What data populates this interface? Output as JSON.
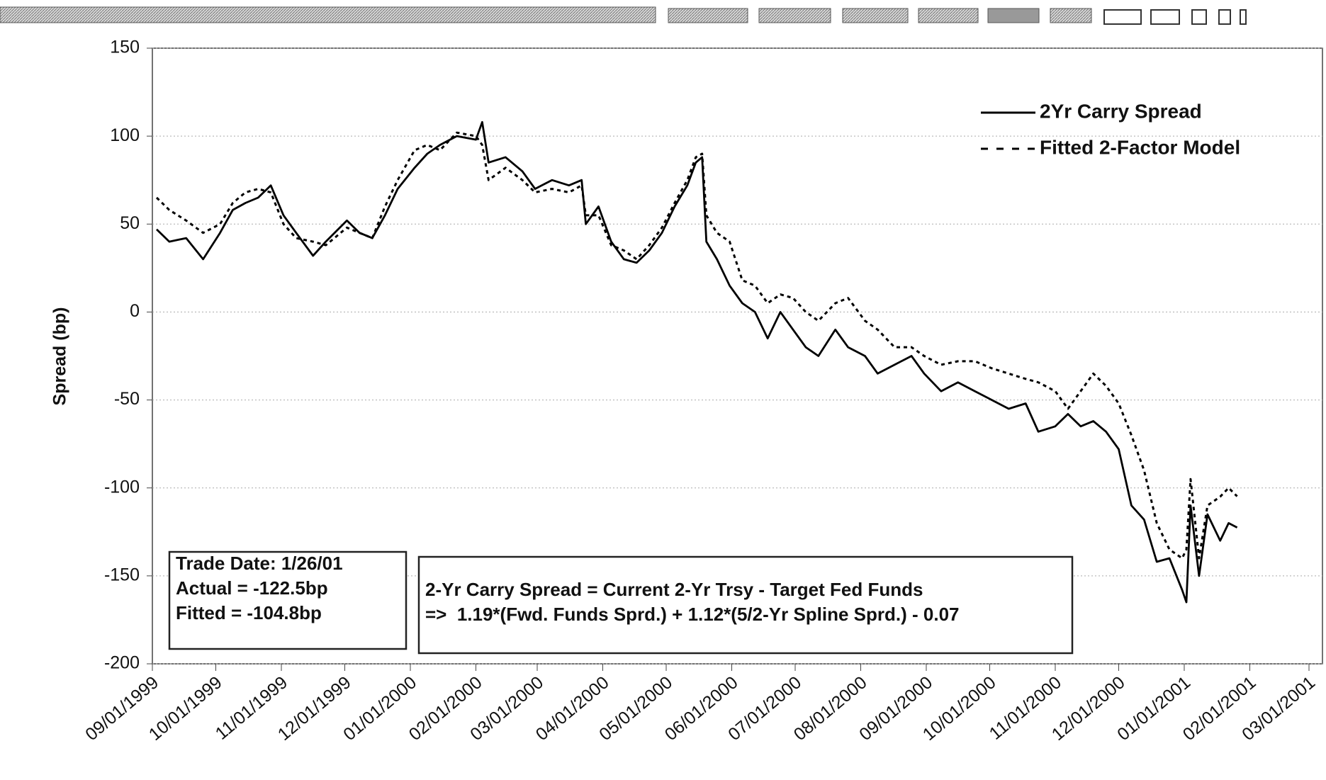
{
  "chart_data": {
    "type": "line",
    "y_label": "Spread (bp)",
    "x": [
      "09/03/1999",
      "09/09/1999",
      "09/17/1999",
      "09/25/1999",
      "10/03/1999",
      "10/09/1999",
      "10/15/1999",
      "10/21/1999",
      "10/27/1999",
      "11/02/1999",
      "11/08/1999",
      "11/16/1999",
      "11/22/1999",
      "12/02/1999",
      "12/08/1999",
      "12/14/1999",
      "12/20/1999",
      "12/26/1999",
      "01/03/2000",
      "01/09/2000",
      "01/15/2000",
      "01/23/2000",
      "02/01/2000",
      "02/04/2000",
      "02/07/2000",
      "02/15/2000",
      "02/23/2000",
      "02/29/2000",
      "03/08/2000",
      "03/16/2000",
      "03/22/2000",
      "03/24/2000",
      "03/30/2000",
      "04/05/2000",
      "04/11/2000",
      "04/17/2000",
      "04/23/2000",
      "04/29/2000",
      "05/05/2000",
      "05/11/2000",
      "05/15/2000",
      "05/18/2000",
      "05/20/2000",
      "05/25/2000",
      "05/31/2000",
      "06/06/2000",
      "06/12/2000",
      "06/18/2000",
      "06/24/2000",
      "06/30/2000",
      "07/06/2000",
      "07/12/2000",
      "07/20/2000",
      "07/26/2000",
      "08/03/2000",
      "08/09/2000",
      "08/17/2000",
      "08/25/2000",
      "08/31/2000",
      "09/08/2000",
      "09/16/2000",
      "09/24/2000",
      "10/02/2000",
      "10/10/2000",
      "10/18/2000",
      "10/24/2000",
      "11/01/2000",
      "11/07/2000",
      "11/13/2000",
      "11/19/2000",
      "11/25/2000",
      "12/01/2000",
      "12/07/2000",
      "12/13/2000",
      "12/19/2000",
      "12/25/2000",
      "12/31/2000",
      "01/02/2001",
      "01/04/2001",
      "01/08/2001",
      "01/12/2001",
      "01/18/2001",
      "01/22/2001",
      "01/26/2001"
    ],
    "series": [
      {
        "name": "2Yr Carry Spread",
        "color": "#000000",
        "line_style": "solid",
        "values": [
          47,
          40,
          42,
          30,
          45,
          58,
          62,
          65,
          72,
          55,
          45,
          32,
          40,
          52,
          45,
          42,
          55,
          70,
          82,
          90,
          95,
          100,
          98,
          108,
          85,
          88,
          80,
          70,
          75,
          72,
          75,
          50,
          60,
          40,
          30,
          28,
          35,
          45,
          60,
          72,
          85,
          88,
          40,
          30,
          15,
          5,
          0,
          -15,
          0,
          -10,
          -20,
          -25,
          -10,
          -20,
          -25,
          -35,
          -30,
          -25,
          -35,
          -45,
          -40,
          -45,
          -50,
          -55,
          -52,
          -68,
          -65,
          -58,
          -65,
          -62,
          -68,
          -78,
          -110,
          -118,
          -142,
          -140,
          -158,
          -165,
          -110,
          -150,
          -115,
          -130,
          -120,
          -122.5
        ]
      },
      {
        "name": "Fitted 2-Factor Model",
        "color": "#000000",
        "line_style": "dashed",
        "values": [
          65,
          58,
          52,
          45,
          50,
          62,
          68,
          70,
          68,
          50,
          42,
          40,
          38,
          48,
          45,
          42,
          60,
          75,
          92,
          95,
          92,
          102,
          100,
          95,
          75,
          82,
          75,
          68,
          70,
          68,
          72,
          55,
          55,
          38,
          35,
          30,
          38,
          48,
          62,
          75,
          88,
          90,
          55,
          45,
          40,
          18,
          15,
          5,
          10,
          8,
          0,
          -5,
          5,
          8,
          -5,
          -10,
          -20,
          -20,
          -25,
          -30,
          -28,
          -28,
          -32,
          -35,
          -38,
          -40,
          -45,
          -55,
          -45,
          -35,
          -42,
          -52,
          -70,
          -90,
          -120,
          -135,
          -140,
          -135,
          -95,
          -140,
          -110,
          -105,
          -100,
          -104.8
        ]
      }
    ],
    "xlim": [
      "09/01/1999",
      "03/01/2001"
    ],
    "xticks": [
      "09/01/1999",
      "10/01/1999",
      "11/01/1999",
      "12/01/1999",
      "01/01/2000",
      "02/01/2000",
      "03/01/2000",
      "04/01/2000",
      "05/01/2000",
      "06/01/2000",
      "07/01/2000",
      "08/01/2000",
      "09/01/2000",
      "10/01/2000",
      "11/01/2000",
      "12/01/2000",
      "01/01/2001",
      "02/01/2001",
      "03/01/2001"
    ],
    "ylim": [
      -200,
      150
    ],
    "yticks": [
      -200,
      -150,
      -100,
      -50,
      0,
      50,
      100,
      150
    ],
    "grid": true,
    "legend": "upper right",
    "annotations": [
      [
        "Trade Date: 1/26/01",
        "Actual = -122.5bp",
        "Fitted = -104.8bp"
      ],
      [
        "2-Yr Carry Spread = Current 2-Yr Trsy - Target Fed Funds",
        "=>  1.19*(Fwd. Funds Sprd.) + 1.12*(5/2-Yr Spline Sprd.) - 0.07"
      ]
    ]
  }
}
